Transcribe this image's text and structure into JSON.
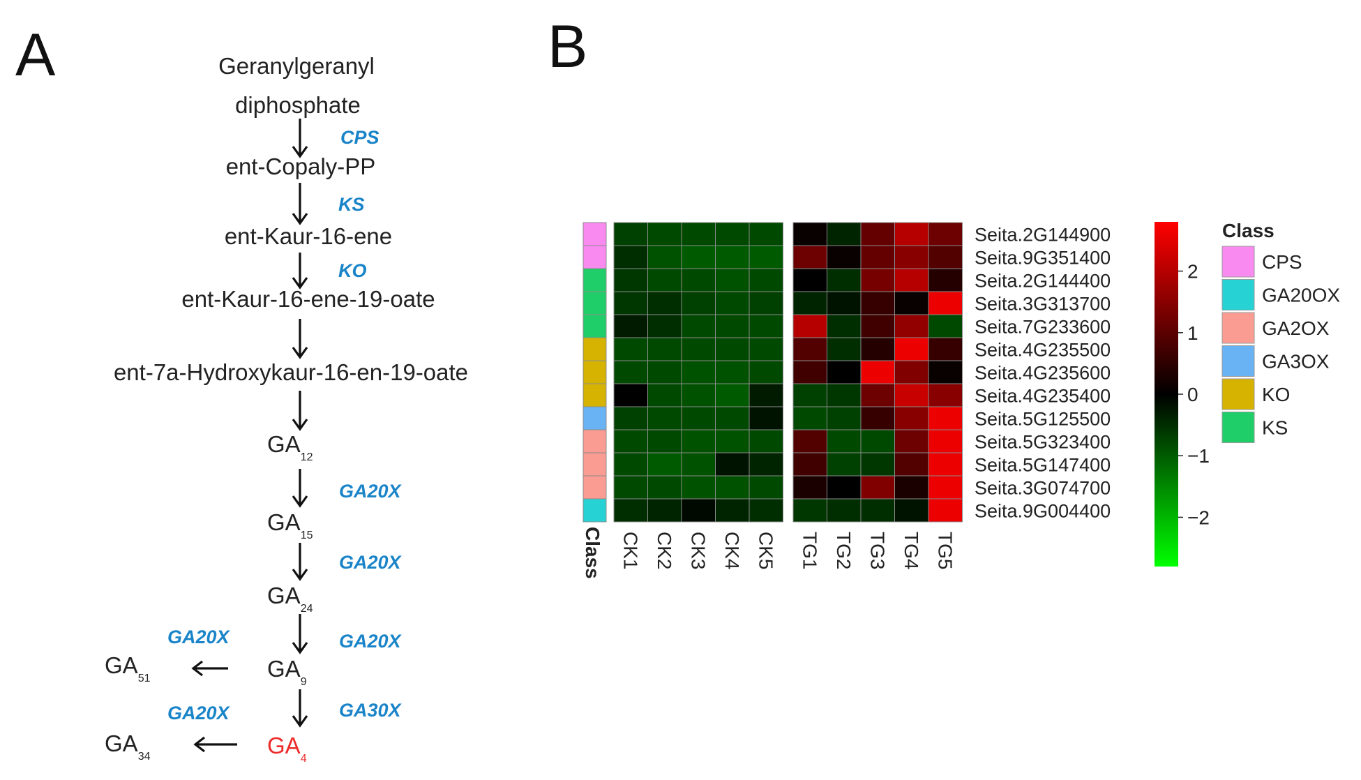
{
  "panel_a": {
    "letter": "A",
    "start_line1": "Geranylgeranyl",
    "start_line2": "diphosphate",
    "metabolites": [
      "ent-Copaly-PP",
      "ent-Kaur-16-ene",
      "ent-Kaur-16-ene-19-oate",
      "ent-7a-Hydroxykaur-16-en-19-oate"
    ],
    "enzymes": [
      "CPS",
      "KS",
      "KO"
    ],
    "ga": {
      "ga12": {
        "base": "GA",
        "sub": "12"
      },
      "ga15": {
        "base": "GA",
        "sub": "15"
      },
      "ga24": {
        "base": "GA",
        "sub": "24"
      },
      "ga9": {
        "base": "GA",
        "sub": "9"
      },
      "ga4": {
        "base": "GA",
        "sub": "4"
      },
      "ga51": {
        "base": "GA",
        "sub": "51"
      },
      "ga34": {
        "base": "GA",
        "sub": "34"
      }
    },
    "ga_enzymes": {
      "e12_15": "GA20X",
      "e15_24": "GA20X",
      "e24_9": "GA20X",
      "e9_51": "GA20X",
      "e9_4": "GA30X",
      "e4_34": "GA20X"
    },
    "colors": {
      "enzyme": "#1a84c9",
      "highlight": "#ee2b2b"
    }
  },
  "chart_data": {
    "type": "heatmap",
    "panel_letter": "B",
    "title": "",
    "columns": [
      "CK1",
      "CK2",
      "CK3",
      "CK4",
      "CK5",
      "TG1",
      "TG2",
      "TG3",
      "TG4",
      "TG5"
    ],
    "column_groups": [
      [
        "CK1",
        "CK2",
        "CK3",
        "CK4",
        "CK5"
      ],
      [
        "TG1",
        "TG2",
        "TG3",
        "TG4",
        "TG5"
      ]
    ],
    "rows": [
      "Seita.2G144900",
      "Seita.9G351400",
      "Seita.2G144400",
      "Seita.3G313700",
      "Seita.7G233600",
      "Seita.4G235500",
      "Seita.4G235600",
      "Seita.4G235400",
      "Seita.5G125500",
      "Seita.5G323400",
      "Seita.5G147400",
      "Seita.3G074700",
      "Seita.9G004400"
    ],
    "row_class": [
      "CPS",
      "CPS",
      "KS",
      "KS",
      "KS",
      "KO",
      "KO",
      "KO",
      "GA3OX",
      "GA2OX",
      "GA2OX",
      "GA2OX",
      "GA20OX"
    ],
    "class_axis_label": "Class",
    "values": [
      [
        -0.7,
        -0.8,
        -0.8,
        -0.8,
        -0.8,
        0.1,
        -0.4,
        1.1,
        2.0,
        1.2
      ],
      [
        -0.5,
        -0.9,
        -1.0,
        -1.0,
        -1.0,
        1.2,
        0.1,
        1.1,
        1.5,
        0.9
      ],
      [
        -0.6,
        -0.8,
        -0.8,
        -0.9,
        -0.8,
        0.0,
        -0.5,
        1.3,
        2.0,
        0.4
      ],
      [
        -0.6,
        -0.5,
        -0.7,
        -0.8,
        -0.7,
        -0.4,
        -0.2,
        0.6,
        0.1,
        2.6
      ],
      [
        -0.3,
        -0.5,
        -0.8,
        -0.8,
        -0.8,
        2.0,
        -0.5,
        0.7,
        1.6,
        -0.8
      ],
      [
        -0.8,
        -0.8,
        -0.8,
        -0.8,
        -0.8,
        0.9,
        -0.5,
        0.4,
        2.6,
        0.6
      ],
      [
        -0.8,
        -0.8,
        -0.9,
        -0.9,
        -0.8,
        0.7,
        0.0,
        2.6,
        1.4,
        0.1
      ],
      [
        0.0,
        -0.8,
        -0.9,
        -1.0,
        -0.3,
        -0.7,
        -0.6,
        1.2,
        2.2,
        1.5
      ],
      [
        -0.7,
        -0.8,
        -0.8,
        -0.8,
        -0.2,
        -0.8,
        -0.7,
        0.6,
        1.5,
        2.6
      ],
      [
        -0.8,
        -0.8,
        -0.9,
        -0.9,
        -0.8,
        0.9,
        -0.8,
        -0.8,
        1.2,
        2.6
      ],
      [
        -0.8,
        -1.0,
        -0.9,
        -0.2,
        -0.4,
        0.7,
        -0.7,
        -0.6,
        0.9,
        2.6
      ],
      [
        -0.8,
        -0.8,
        -0.9,
        -0.9,
        -0.8,
        0.3,
        0.0,
        1.4,
        0.3,
        2.6
      ],
      [
        -0.5,
        -0.4,
        -0.1,
        -0.4,
        -0.5,
        -0.6,
        -0.5,
        -0.5,
        -0.2,
        2.6
      ]
    ],
    "colorbar": {
      "ticks": [
        2,
        1,
        0,
        -1,
        -2
      ],
      "tick_labels": [
        "2",
        "1",
        "0",
        "−1",
        "−2"
      ],
      "range": [
        -2.8,
        2.8
      ],
      "colors": [
        "#00ff00",
        "#000000",
        "#ff0000"
      ]
    },
    "legend": {
      "title": "Class",
      "items": [
        {
          "label": "CPS",
          "color": "#f88af0"
        },
        {
          "label": "GA20OX",
          "color": "#26d2d4"
        },
        {
          "label": "GA2OX",
          "color": "#fa9c92"
        },
        {
          "label": "GA3OX",
          "color": "#69b3f5"
        },
        {
          "label": "KO",
          "color": "#d6b300"
        },
        {
          "label": "KS",
          "color": "#1fce68"
        }
      ]
    }
  }
}
